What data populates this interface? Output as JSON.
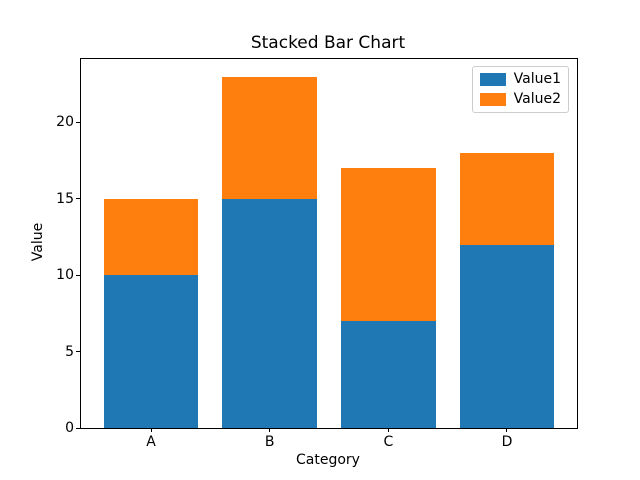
{
  "chart_data": {
    "type": "bar",
    "stacked": true,
    "title": "Stacked Bar Chart",
    "xlabel": "Category",
    "ylabel": "Value",
    "categories": [
      "A",
      "B",
      "C",
      "D"
    ],
    "series": [
      {
        "name": "Value1",
        "color": "#1f77b4",
        "values": [
          10,
          15,
          7,
          12
        ]
      },
      {
        "name": "Value2",
        "color": "#ff7f0e",
        "values": [
          5,
          8,
          10,
          6
        ]
      }
    ],
    "stacked_totals": [
      15,
      23,
      17,
      18
    ],
    "yticks": [
      0,
      5,
      10,
      15,
      20
    ],
    "ylim": [
      0,
      24.15
    ],
    "xlim": [
      -0.59,
      3.59
    ],
    "bar_width": 0.8,
    "grid": false,
    "legend_position": "upper-right",
    "background_color": "#ffffff",
    "spine_color": "#000000"
  }
}
